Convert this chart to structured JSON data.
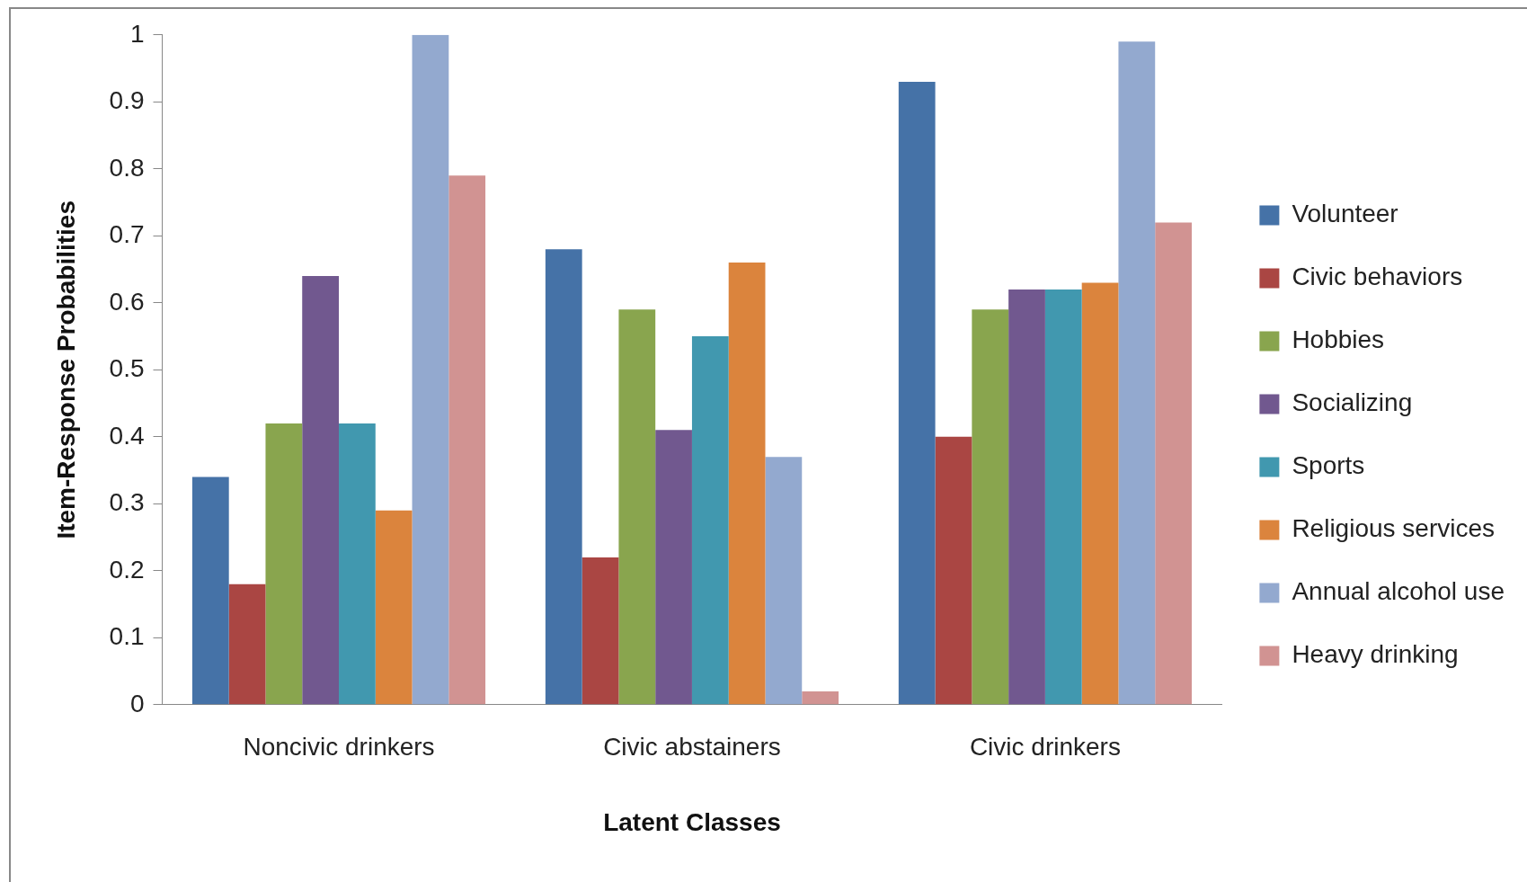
{
  "chart_data": {
    "type": "bar",
    "xlabel": "Latent Classes",
    "ylabel": "Item-Response Probabilities",
    "categories": [
      "Noncivic drinkers",
      "Civic abstainers",
      "Civic drinkers"
    ],
    "series": [
      {
        "name": "Volunteer",
        "color": "#4572a7",
        "values": [
          0.34,
          0.68,
          0.93
        ]
      },
      {
        "name": "Civic behaviors",
        "color": "#aa4643",
        "values": [
          0.18,
          0.22,
          0.4
        ]
      },
      {
        "name": "Hobbies",
        "color": "#89a54e",
        "values": [
          0.42,
          0.59,
          0.59
        ]
      },
      {
        "name": "Socializing",
        "color": "#71588f",
        "values": [
          0.64,
          0.41,
          0.62
        ]
      },
      {
        "name": "Sports",
        "color": "#4198af",
        "values": [
          0.42,
          0.55,
          0.62
        ]
      },
      {
        "name": "Religious services",
        "color": "#db843d",
        "values": [
          0.29,
          0.66,
          0.63
        ]
      },
      {
        "name": "Annual alcohol use",
        "color": "#93a9cf",
        "values": [
          1.0,
          0.37,
          0.99
        ]
      },
      {
        "name": "Heavy drinking",
        "color": "#d19392",
        "values": [
          0.79,
          0.02,
          0.72
        ]
      }
    ],
    "ylim": [
      0,
      1
    ],
    "yticks": [
      0,
      0.1,
      0.2,
      0.3,
      0.4,
      0.5,
      0.6,
      0.7,
      0.8,
      0.9,
      1
    ],
    "grid": false,
    "legend": "right"
  }
}
